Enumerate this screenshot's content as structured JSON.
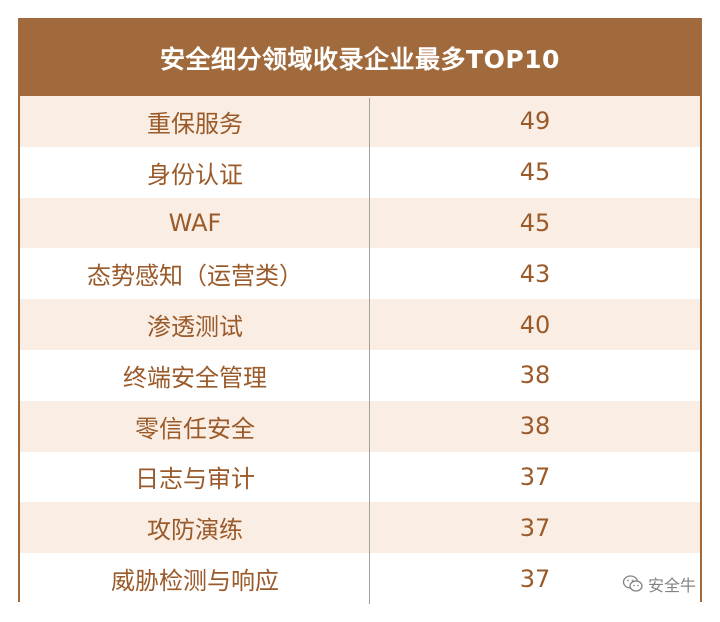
{
  "chart_data": {
    "type": "table",
    "title": "安全细分领域收录企业最多TOP10",
    "rows": [
      {
        "name": "重保服务",
        "value": "49"
      },
      {
        "name": "身份认证",
        "value": "45"
      },
      {
        "name": "WAF",
        "value": "45"
      },
      {
        "name": "态势感知（运营类）",
        "value": "43"
      },
      {
        "name": "渗透测试",
        "value": "40"
      },
      {
        "name": "终端安全管理",
        "value": "38"
      },
      {
        "name": "零信任安全",
        "value": "38"
      },
      {
        "name": "日志与审计",
        "value": "37"
      },
      {
        "name": "攻防演练",
        "value": "37"
      },
      {
        "name": "威胁检测与响应",
        "value": "37"
      }
    ]
  },
  "watermark": {
    "text": "安全牛",
    "icon": "wechat-icon"
  },
  "colors": {
    "header_bg": "#a06a3c",
    "text": "#9a5a2a",
    "row_shade": "#faeee4"
  }
}
